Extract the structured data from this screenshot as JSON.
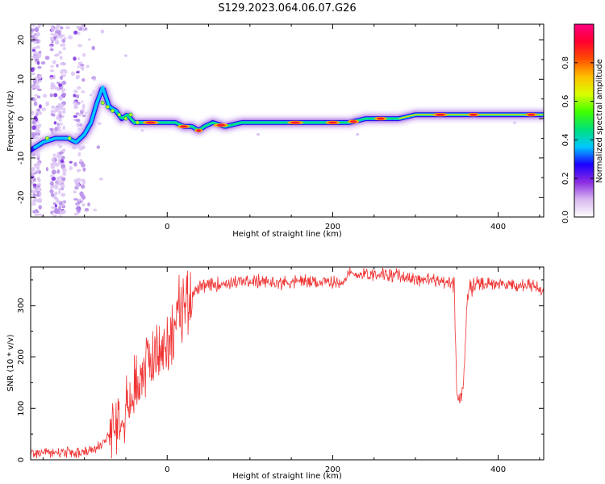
{
  "title": "S129.2023.064.06.07.G26",
  "chart_data": [
    {
      "type": "heatmap",
      "xlabel": "Height of straight line (km)",
      "ylabel": "Frequency (Hz)",
      "xlim": [
        -165,
        455
      ],
      "ylim": [
        -25,
        24
      ],
      "x_ticks": [
        0,
        200,
        400
      ],
      "y_ticks": [
        -20,
        -10,
        0,
        10,
        20
      ],
      "colorbar": {
        "label": "Normalized spectral amplitude",
        "range": [
          0,
          1
        ],
        "ticks": [
          "0.0",
          "0.2",
          "0.4",
          "0.6",
          "0.8"
        ],
        "colors": [
          "#ffffff",
          "#d8b8f0",
          "#8a2be2",
          "#1a00ff",
          "#00c8ff",
          "#00e07a",
          "#40ff00",
          "#d8ff00",
          "#ffc000",
          "#ff5000",
          "#ff0030",
          "#ff0080"
        ]
      },
      "ridge": {
        "x": [
          -165,
          -150,
          -135,
          -120,
          -110,
          -100,
          -92,
          -85,
          -78,
          -70,
          -62,
          -55,
          -48,
          -40,
          -30,
          -20,
          -10,
          0,
          10,
          20,
          30,
          38,
          45,
          55,
          70,
          90,
          110,
          130,
          150,
          170,
          190,
          205,
          220,
          240,
          260,
          280,
          300,
          320,
          340,
          360,
          380,
          400,
          420,
          440,
          455
        ],
        "y": [
          -8,
          -6,
          -5,
          -5,
          -6,
          -4,
          -1,
          4,
          8,
          3,
          2,
          0,
          1,
          -1,
          -1,
          -1,
          -1,
          -1,
          -1,
          -2,
          -2,
          -3,
          -2,
          -1,
          -2,
          -1,
          -1,
          -1,
          -1,
          -1,
          -1,
          -1,
          -1,
          0,
          0,
          0,
          1,
          1,
          1,
          1,
          1,
          1,
          1,
          1,
          1
        ]
      }
    },
    {
      "type": "line",
      "xlabel": "Height of straight line (km)",
      "ylabel": "SNR (10 * v/v)",
      "xlim": [
        -165,
        455
      ],
      "ylim": [
        0,
        375
      ],
      "x_ticks": [
        0,
        200,
        400
      ],
      "y_ticks": [
        0,
        100,
        200,
        300
      ],
      "color": "#ef3333",
      "series": [
        {
          "x": [
            -165,
            -150,
            -130,
            -110,
            -95,
            -85,
            -75,
            -65,
            -55,
            -48,
            -40,
            -32,
            -25,
            -18,
            -10,
            -3,
            3,
            8,
            15,
            22,
            30,
            40,
            60,
            80,
            100,
            120,
            140,
            160,
            180,
            200,
            210,
            220,
            240,
            260,
            280,
            300,
            320,
            340,
            347,
            350,
            352,
            355,
            358,
            362,
            365,
            368,
            372,
            380,
            400,
            420,
            440,
            455
          ],
          "y": [
            12,
            15,
            14,
            13,
            15,
            22,
            35,
            70,
            100,
            105,
            130,
            170,
            190,
            200,
            205,
            215,
            240,
            260,
            290,
            310,
            325,
            335,
            342,
            345,
            347,
            345,
            345,
            348,
            345,
            345,
            346,
            360,
            362,
            362,
            358,
            352,
            350,
            345,
            338,
            120,
            115,
            125,
            130,
            300,
            340,
            330,
            345,
            345,
            342,
            340,
            338,
            330
          ]
        }
      ]
    }
  ]
}
